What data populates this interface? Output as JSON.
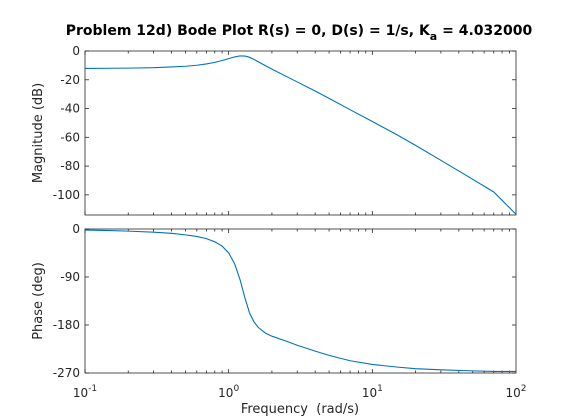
{
  "chart_data": [
    {
      "type": "line",
      "title": "Problem 12d) Bode Plot R(s) = 0, D(s) = 1/s, K",
      "title_subscript": "a",
      "title_suffix": " = 4.032000",
      "ylabel": "Magnitude (dB)",
      "xlabel": "",
      "xscale": "log",
      "xlim": [
        0.1,
        100
      ],
      "ylim": [
        -114,
        0
      ],
      "yticks": [
        0,
        -20,
        -40,
        -60,
        -80,
        -100
      ],
      "ytick_labels": [
        "0",
        "-20",
        "-40",
        "-60",
        "-80",
        "-100"
      ],
      "series": [
        {
          "x": [
            0.1,
            0.15,
            0.2,
            0.3,
            0.4,
            0.5,
            0.6,
            0.7,
            0.8,
            0.9,
            1.0,
            1.1,
            1.2,
            1.3,
            1.4,
            1.5,
            1.6,
            1.8,
            2.0,
            2.5,
            3.0,
            4.0,
            5.0,
            7.0,
            10.0,
            15.0,
            20.0,
            30.0,
            50.0,
            70.0,
            100.0
          ],
          "values": [
            -12.1,
            -12.0,
            -11.9,
            -11.6,
            -11.1,
            -10.6,
            -9.9,
            -9.0,
            -7.9,
            -6.6,
            -5.3,
            -4.1,
            -3.4,
            -3.5,
            -4.4,
            -5.8,
            -7.4,
            -10.2,
            -12.6,
            -17.5,
            -21.5,
            -27.8,
            -32.9,
            -40.8,
            -49.0,
            -58.5,
            -65.6,
            -76.0,
            -89.2,
            -98.0,
            -113.5
          ],
          "color": "#0072bd"
        }
      ]
    },
    {
      "type": "line",
      "title": "",
      "ylabel": "Phase (deg)",
      "xlabel": "Frequency  (rad/s)",
      "xscale": "log",
      "xlim": [
        0.1,
        100
      ],
      "ylim": [
        -270,
        0
      ],
      "yticks": [
        0,
        -90,
        -180,
        -270
      ],
      "ytick_labels": [
        "0",
        "-90",
        "-180",
        "-270"
      ],
      "xticks": [
        0.1,
        1,
        10,
        100
      ],
      "xtick_base": [
        "10",
        "10",
        "10",
        "10"
      ],
      "xtick_exp": [
        "-1",
        "0",
        "1",
        "2"
      ],
      "series": [
        {
          "x": [
            0.1,
            0.15,
            0.2,
            0.3,
            0.4,
            0.5,
            0.6,
            0.7,
            0.8,
            0.9,
            1.0,
            1.1,
            1.2,
            1.3,
            1.4,
            1.5,
            1.6,
            1.7,
            1.8,
            2.0,
            2.5,
            3.0,
            4.0,
            5.0,
            7.0,
            10.0,
            15.0,
            20.0,
            30.0,
            50.0,
            70.0,
            100.0
          ],
          "values": [
            -2,
            -3,
            -4,
            -6,
            -8,
            -11,
            -14,
            -18,
            -24,
            -32,
            -45,
            -65,
            -95,
            -130,
            -158,
            -174,
            -184,
            -190,
            -195,
            -201,
            -210,
            -218,
            -229,
            -237,
            -247,
            -254,
            -259,
            -262,
            -264,
            -266,
            -267,
            -267
          ],
          "color": "#0072bd"
        }
      ]
    }
  ]
}
